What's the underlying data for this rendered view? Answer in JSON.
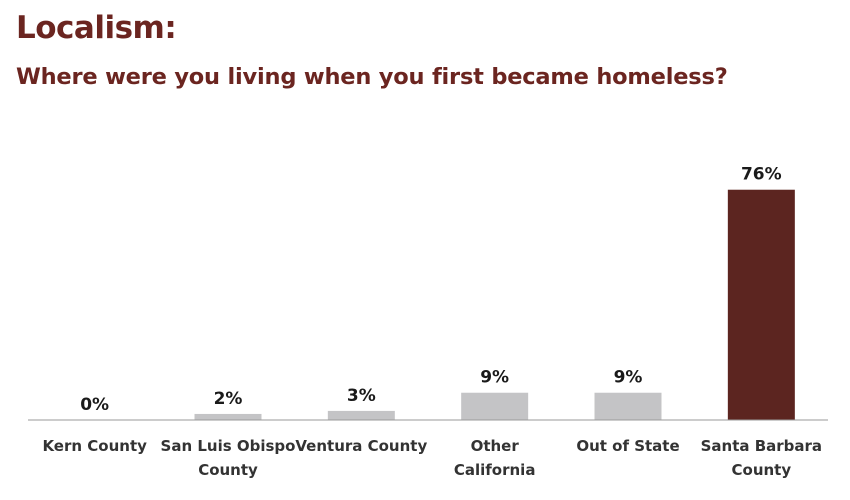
{
  "title": "Localism:",
  "subtitle": "Where were you living when you first became homeless?",
  "colors": {
    "title": "#6b2520",
    "bar_default": "#c4c4c6",
    "bar_highlight": "#5c2520",
    "axis": "#9a9a9a"
  },
  "chart_data": {
    "type": "bar",
    "categories": [
      [
        "Kern County"
      ],
      [
        "San Luis Obispo",
        "County"
      ],
      [
        "Ventura County"
      ],
      [
        "Other",
        "California"
      ],
      [
        "Out of State"
      ],
      [
        "Santa Barbara",
        "County"
      ]
    ],
    "values": [
      0,
      2,
      3,
      9,
      9,
      76
    ],
    "value_labels": [
      "0%",
      "2%",
      "3%",
      "9%",
      "9%",
      "76%"
    ],
    "highlight_index": 5,
    "ylim": [
      0,
      100
    ],
    "grid": false,
    "xlabel": "",
    "ylabel": ""
  }
}
